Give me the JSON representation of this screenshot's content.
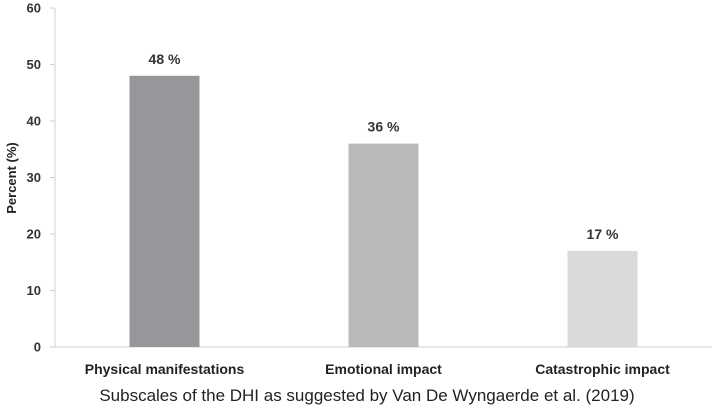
{
  "chart_data": {
    "type": "bar",
    "title": "",
    "xlabel": "Subscales of the DHI as suggested by Van De Wyngaerde et al. (2019)",
    "ylabel": "Percent (%)",
    "ylim": [
      0,
      60
    ],
    "yticks": [
      0,
      10,
      20,
      30,
      40,
      50,
      60
    ],
    "grid": false,
    "categories": [
      "Physical manifestations",
      "Emotional impact",
      "Catastrophic impact"
    ],
    "values": [
      48,
      36,
      17
    ],
    "data_labels": [
      "48 %",
      "36 %",
      "17 %"
    ],
    "colors": [
      "#97979b",
      "#b9b9bc",
      "#dadadb"
    ]
  }
}
